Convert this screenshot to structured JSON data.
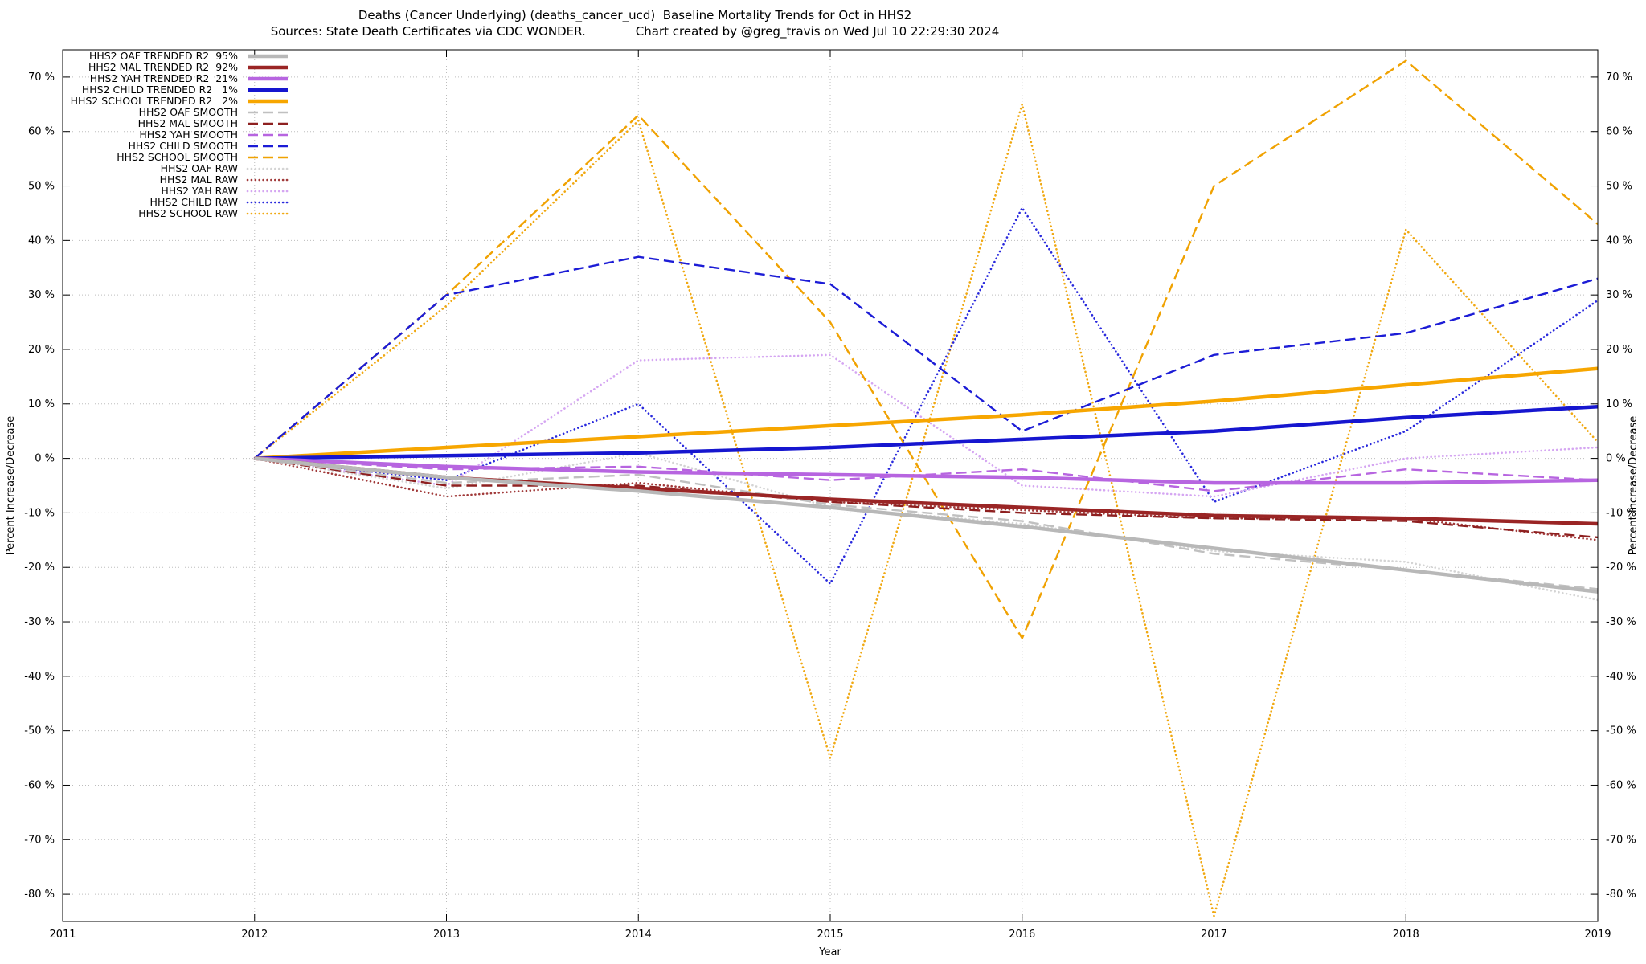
{
  "chart_data": {
    "type": "line",
    "title": "Deaths (Cancer Underlying) (deaths_cancer_ucd)  Baseline Mortality Trends for Oct in HHS2",
    "subtitle": "Sources: State Death Certificates via CDC WONDER.             Chart created by @greg_travis on Wed Jul 10 22:29:30 2024",
    "xlabel": "Year",
    "ylabel_left": "Percent Increase/Decrease",
    "ylabel_right": "Percent Increase/Decrease",
    "xlim": [
      2011,
      2019
    ],
    "ylim": [
      -85,
      75
    ],
    "xticks": [
      2011,
      2012,
      2013,
      2014,
      2015,
      2016,
      2017,
      2018,
      2019
    ],
    "yticks": [
      -80,
      -70,
      -60,
      -50,
      -40,
      -30,
      -20,
      -10,
      0,
      10,
      20,
      30,
      40,
      50,
      60,
      70
    ],
    "grid": true,
    "legend_position": "top-left",
    "x": [
      2012,
      2013,
      2014,
      2015,
      2016,
      2017,
      2018,
      2019
    ],
    "series": [
      {
        "id": "oaf-trended",
        "label": "HHS2 OAF TRENDED R2  95%",
        "r2_percent": 95,
        "color": "#b8b8b8",
        "style": "trended",
        "values": [
          0,
          -3.5,
          -6,
          -9,
          -12.5,
          -16.5,
          -20.5,
          -24.5
        ]
      },
      {
        "id": "mal-trended",
        "label": "HHS2 MAL TRENDED R2  92%",
        "r2_percent": 92,
        "color": "#9a2525",
        "style": "trended",
        "values": [
          0,
          -3.5,
          -5.5,
          -7.5,
          -9,
          -10.5,
          -11,
          -12
        ]
      },
      {
        "id": "yah-trended",
        "label": "HHS2 YAH TRENDED R2  21%",
        "r2_percent": 21,
        "color": "#b765e0",
        "style": "trended",
        "values": [
          0,
          -1.5,
          -2.5,
          -3,
          -3.5,
          -4.5,
          -4.5,
          -4
        ]
      },
      {
        "id": "child-trended",
        "label": "HHS2 CHILD TRENDED R2   1%",
        "r2_percent": 1,
        "color": "#1616cf",
        "style": "trended",
        "values": [
          0,
          0.5,
          1,
          2,
          3.5,
          5,
          7.5,
          9.5
        ]
      },
      {
        "id": "school-trended",
        "label": "HHS2 SCHOOL TRENDED R2   2%",
        "r2_percent": 2,
        "color": "#f7a600",
        "style": "trended",
        "values": [
          0,
          2,
          4,
          6,
          8,
          10.5,
          13.5,
          16.5
        ]
      },
      {
        "id": "oaf-smooth",
        "label": "HHS2 OAF SMOOTH",
        "color": "#c0c0c0",
        "style": "smooth",
        "values": [
          0,
          -4.5,
          -3,
          -8.5,
          -11.5,
          -17.5,
          -20.5,
          -24
        ]
      },
      {
        "id": "mal-smooth",
        "label": "HHS2 MAL SMOOTH",
        "color": "#8e2020",
        "style": "smooth",
        "values": [
          0,
          -5,
          -5,
          -8,
          -10,
          -11,
          -11.5,
          -14.5
        ]
      },
      {
        "id": "yah-smooth",
        "label": "HHS2 YAH SMOOTH",
        "color": "#b765e0",
        "style": "smooth",
        "values": [
          0,
          -2,
          -1.5,
          -4,
          -2,
          -6,
          -2,
          -4
        ]
      },
      {
        "id": "child-smooth",
        "label": "HHS2 CHILD SMOOTH",
        "color": "#1c1cd6",
        "style": "smooth",
        "values": [
          0,
          30,
          37,
          32,
          5,
          19,
          23,
          33
        ]
      },
      {
        "id": "school-smooth",
        "label": "HHS2 SCHOOL SMOOTH",
        "color": "#f0a202",
        "style": "smooth",
        "values": [
          0,
          30,
          63,
          25,
          -33,
          50,
          73,
          43
        ]
      },
      {
        "id": "oaf-raw",
        "label": "HHS2 OAF RAW",
        "color": "#d4d4d4",
        "style": "raw",
        "values": [
          0,
          -5.5,
          1,
          -9,
          -12,
          -17,
          -19,
          -26
        ]
      },
      {
        "id": "mal-raw",
        "label": "HHS2 MAL RAW",
        "color": "#a13a3a",
        "style": "raw",
        "values": [
          0,
          -7,
          -4.5,
          -8,
          -9.5,
          -11,
          -11,
          -15
        ]
      },
      {
        "id": "yah-raw",
        "label": "HHS2 YAH RAW",
        "color": "#d5a6f2",
        "style": "raw",
        "values": [
          0,
          -5,
          18,
          19,
          -5,
          -7,
          0,
          2
        ]
      },
      {
        "id": "child-raw",
        "label": "HHS2 CHILD RAW",
        "color": "#2929dd",
        "style": "raw",
        "values": [
          0,
          -4,
          10,
          -23,
          46,
          -8,
          5,
          29
        ]
      },
      {
        "id": "school-raw",
        "label": "HHS2 SCHOOL RAW",
        "color": "#f0a811",
        "style": "raw",
        "values": [
          0,
          28,
          62,
          -55,
          65,
          -84,
          42,
          3
        ]
      }
    ]
  }
}
